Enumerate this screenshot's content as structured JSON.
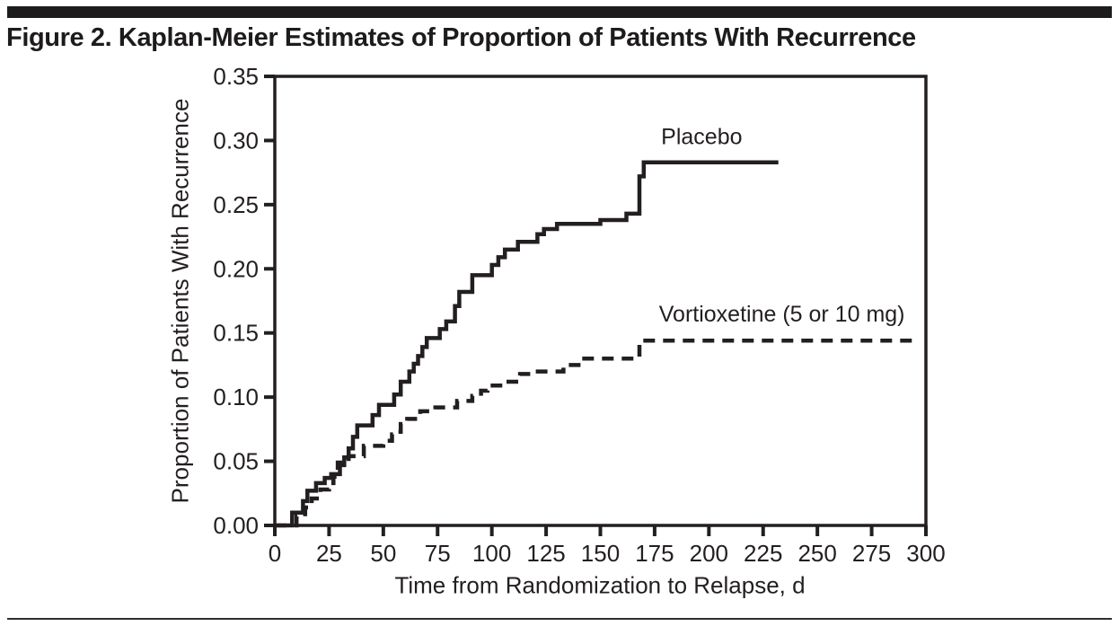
{
  "page": {
    "title": "Figure 2. Kaplan-Meier Estimates of Proportion of Patients With Recurrence"
  },
  "colors": {
    "ink": "#231f20",
    "rule": "#1d1b1b",
    "background": "#ffffff"
  },
  "chart_data": {
    "type": "line",
    "subtype": "kaplan-meier-step",
    "title": "Figure 2. Kaplan-Meier Estimates of Proportion of Patients With Recurrence",
    "xlabel": "Time from Randomization to Relapse, d",
    "ylabel": "Proportion of Patients With Recurrence",
    "xlim": [
      0,
      300
    ],
    "ylim": [
      0,
      0.35
    ],
    "xtick_values": [
      0,
      25,
      50,
      75,
      100,
      125,
      150,
      175,
      200,
      225,
      250,
      275,
      300
    ],
    "xtick_labels": [
      "0",
      "25",
      "50",
      "75",
      "100",
      "125",
      "150",
      "175",
      "200",
      "225",
      "250",
      "275",
      "300"
    ],
    "ytick_values": [
      0.0,
      0.05,
      0.1,
      0.15,
      0.2,
      0.25,
      0.3,
      0.35
    ],
    "ytick_labels": [
      "0.00",
      "0.05",
      "0.10",
      "0.15",
      "0.20",
      "0.25",
      "0.30",
      "0.35"
    ],
    "grid": false,
    "legend_position": "inline-labels",
    "frame": "box",
    "series": [
      {
        "name": "Placebo",
        "style": "solid",
        "color": "#231f20",
        "label_pos": [
          178,
          0.297
        ],
        "points": [
          [
            0,
            0.0
          ],
          [
            8,
            0.01
          ],
          [
            13,
            0.019
          ],
          [
            15,
            0.027
          ],
          [
            19,
            0.033
          ],
          [
            23,
            0.037
          ],
          [
            26,
            0.04
          ],
          [
            30,
            0.047
          ],
          [
            32,
            0.053
          ],
          [
            34,
            0.06
          ],
          [
            36,
            0.069
          ],
          [
            38,
            0.078
          ],
          [
            45,
            0.086
          ],
          [
            48,
            0.094
          ],
          [
            55,
            0.102
          ],
          [
            58,
            0.112
          ],
          [
            62,
            0.12
          ],
          [
            64,
            0.126
          ],
          [
            66,
            0.132
          ],
          [
            68,
            0.139
          ],
          [
            70,
            0.146
          ],
          [
            76,
            0.153
          ],
          [
            79,
            0.159
          ],
          [
            83,
            0.171
          ],
          [
            85,
            0.182
          ],
          [
            91,
            0.195
          ],
          [
            100,
            0.203
          ],
          [
            103,
            0.209
          ],
          [
            106,
            0.215
          ],
          [
            112,
            0.221
          ],
          [
            121,
            0.227
          ],
          [
            124,
            0.231
          ],
          [
            130,
            0.235
          ],
          [
            150,
            0.238
          ],
          [
            162,
            0.243
          ],
          [
            168,
            0.272
          ],
          [
            170,
            0.283
          ],
          [
            232,
            0.283
          ]
        ]
      },
      {
        "name": "Vortioxetine (5 or 10 mg)",
        "style": "dashed",
        "color": "#231f20",
        "label_pos": [
          177,
          0.159
        ],
        "points": [
          [
            0,
            0.0
          ],
          [
            10,
            0.007
          ],
          [
            14,
            0.014
          ],
          [
            17,
            0.021
          ],
          [
            21,
            0.028
          ],
          [
            25,
            0.033
          ],
          [
            27,
            0.038
          ],
          [
            29,
            0.049
          ],
          [
            34,
            0.054
          ],
          [
            41,
            0.062
          ],
          [
            50,
            0.066
          ],
          [
            54,
            0.071
          ],
          [
            56,
            0.073
          ],
          [
            58,
            0.079
          ],
          [
            61,
            0.083
          ],
          [
            67,
            0.089
          ],
          [
            74,
            0.092
          ],
          [
            84,
            0.097
          ],
          [
            91,
            0.101
          ],
          [
            95,
            0.105
          ],
          [
            98,
            0.109
          ],
          [
            106,
            0.112
          ],
          [
            113,
            0.118
          ],
          [
            120,
            0.12
          ],
          [
            133,
            0.125
          ],
          [
            141,
            0.13
          ],
          [
            168,
            0.144
          ],
          [
            294,
            0.144
          ]
        ]
      }
    ]
  }
}
